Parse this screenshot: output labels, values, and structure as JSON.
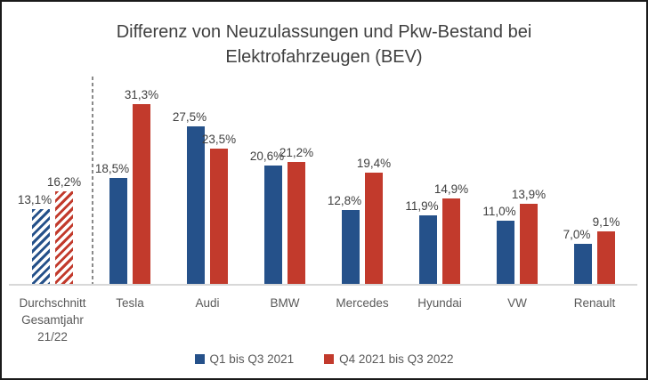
{
  "header": {
    "line1": "Differenz von Neuzulassungen und Pkw-Bestand bei",
    "line2": "Elektrofahrzeugen (BEV)"
  },
  "chart_data": {
    "type": "bar",
    "title": "Differenz von Neuzulassungen und Pkw-Bestand bei Elektrofahrzeugen (BEV)",
    "categories": [
      "Durchschnitt Gesamtjahr 21/22",
      "Tesla",
      "Audi",
      "BMW",
      "Mercedes",
      "Hyundai",
      "VW",
      "Renault"
    ],
    "series": [
      {
        "name": "Q1 bis Q3 2021",
        "color": "#25518A",
        "values": [
          13.1,
          18.5,
          27.5,
          20.6,
          12.8,
          11.9,
          11.0,
          7.0
        ],
        "labels": [
          "13,1%",
          "18,5%",
          "27,5%",
          "20,6%",
          "12,8%",
          "11,9%",
          "11,0%",
          "7,0%"
        ]
      },
      {
        "name": "Q4 2021 bis Q3 2022",
        "color": "#C23A2C",
        "values": [
          16.2,
          31.3,
          23.5,
          21.2,
          19.4,
          14.9,
          13.9,
          9.1
        ],
        "labels": [
          "16,2%",
          "31,3%",
          "23,5%",
          "21,2%",
          "19,4%",
          "14,9%",
          "13,9%",
          "9,1%"
        ]
      }
    ],
    "value_suffix": "%",
    "decimal_separator": ",",
    "ylim": [
      0,
      33
    ],
    "grid": false,
    "legend_position": "bottom",
    "hatched_category_index": 0,
    "divider_after_category_index": 0,
    "colors": {
      "title_text": "#404040",
      "value_label_text": "#404040",
      "category_label_text": "#595959",
      "axis_line": "#D8D8D8",
      "divider_dashed_line": "#8A8A8A",
      "frame_border": "#1A1A1A",
      "background": "#FFFFFF"
    }
  }
}
